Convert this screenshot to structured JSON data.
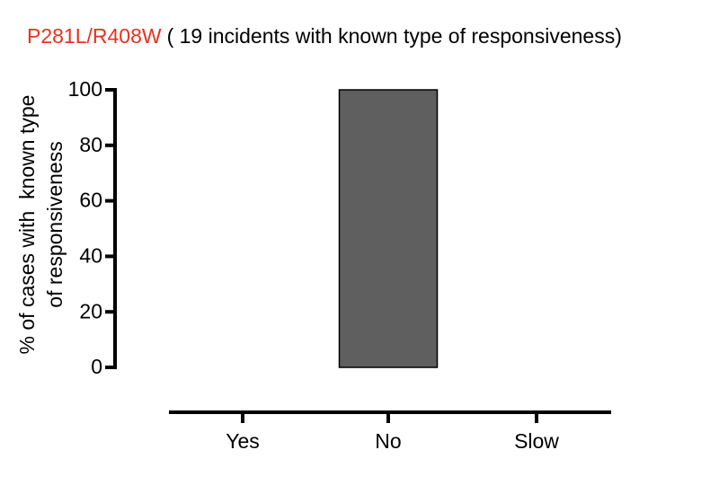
{
  "chart_data": {
    "type": "bar",
    "title": "P281L/R408W",
    "title_color": "#e8321e",
    "subtitle": "( 19 incidents with known type of responsiveness)",
    "ylabel": [
      "% of cases with  known type",
      "of responsiveness"
    ],
    "categories": [
      "Yes",
      "No",
      "Slow"
    ],
    "values": [
      0,
      100,
      0
    ],
    "color": "#5f5f5f",
    "ylim": [
      0,
      100
    ],
    "yticks": [
      0,
      20,
      40,
      60,
      80,
      100
    ]
  }
}
